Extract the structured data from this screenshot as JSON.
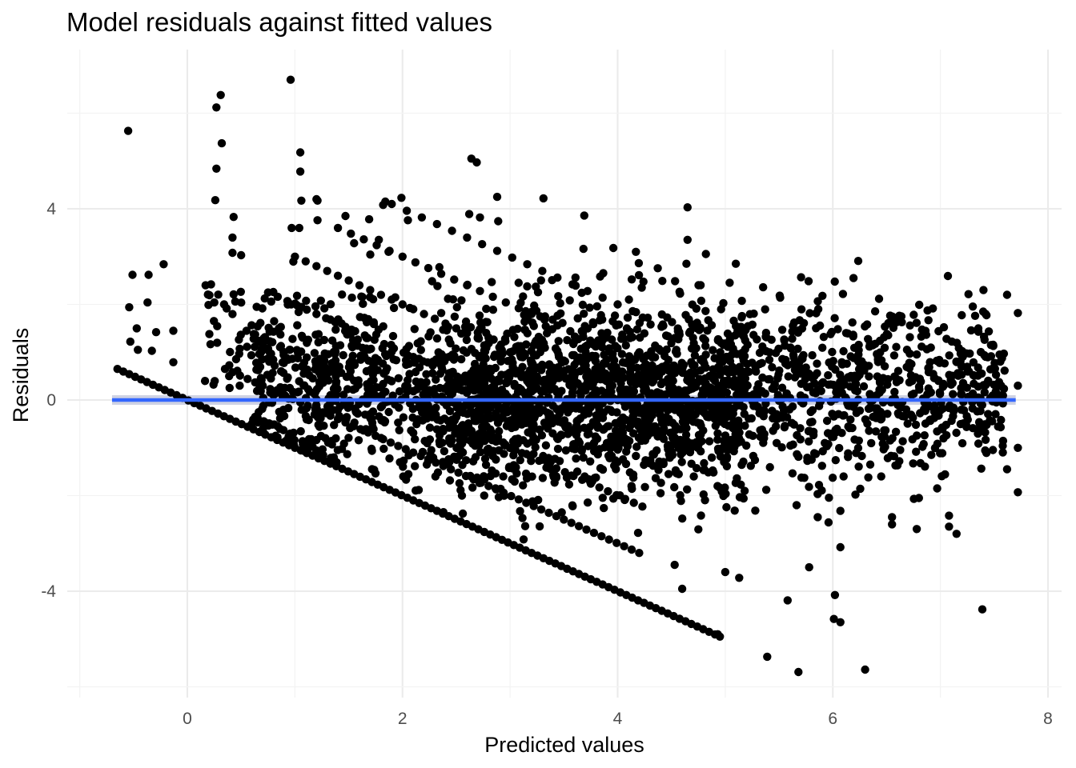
{
  "chart_data": {
    "type": "scatter",
    "title": "Model residuals against fitted values",
    "xlabel": "Predicted values",
    "ylabel": "Residuals",
    "xlim": [
      -1,
      8
    ],
    "ylim": [
      -6,
      7.3
    ],
    "x_ticks": [
      0,
      2,
      4,
      6,
      8
    ],
    "y_ticks": [
      -4,
      0,
      4
    ],
    "x_tick_labels": [
      "0",
      "2",
      "4",
      "6",
      "8"
    ],
    "y_tick_labels": [
      "-4",
      "0",
      "4"
    ],
    "grid": true,
    "theme": "minimal",
    "colors": {
      "points": "#000000",
      "smooth_line": "#3366FF",
      "confidence_band": "#c9cde0"
    },
    "smooth": {
      "method": "linear",
      "points": [
        [
          -0.7,
          0.0
        ],
        [
          7.7,
          0.0
        ]
      ]
    },
    "series": [
      {
        "values": [
          [
            -0.55,
            5.63
          ],
          [
            0.96,
            6.7
          ],
          [
            0.31,
            6.38
          ],
          [
            0.27,
            6.12
          ],
          [
            0.32,
            5.37
          ],
          [
            0.27,
            4.84
          ],
          [
            0.26,
            4.18
          ],
          [
            0.43,
            3.83
          ],
          [
            0.42,
            3.4
          ],
          [
            0.42,
            3.08
          ],
          [
            0.5,
            3.03
          ],
          [
            1.05,
            5.18
          ],
          [
            1.05,
            4.78
          ],
          [
            1.06,
            4.17
          ],
          [
            1.21,
            4.17
          ],
          [
            1.2,
            4.2
          ],
          [
            0.97,
            3.6
          ],
          [
            1.04,
            3.6
          ],
          [
            1.21,
            3.76
          ],
          [
            2.64,
            5.05
          ],
          [
            2.69,
            4.97
          ],
          [
            2.88,
            4.25
          ],
          [
            3.31,
            4.22
          ],
          [
            2.62,
            3.89
          ],
          [
            2.72,
            3.82
          ],
          [
            2.89,
            3.74
          ],
          [
            3.69,
            3.86
          ],
          [
            4.65,
            4.03
          ],
          [
            4.65,
            3.35
          ],
          [
            3.96,
            3.18
          ],
          [
            4.17,
            3.1
          ],
          [
            1.84,
            4.15
          ],
          [
            1.99,
            4.23
          ],
          [
            1.82,
            4.08
          ],
          [
            1.47,
            3.85
          ],
          [
            1.69,
            3.78
          ],
          [
            2.05,
            3.76
          ],
          [
            1.78,
            3.35
          ],
          [
            1.55,
            3.28
          ],
          [
            1.87,
            3.1
          ],
          [
            0.17,
            2.4
          ],
          [
            0.22,
            2.42
          ],
          [
            -0.22,
            2.84
          ],
          [
            -0.36,
            2.62
          ],
          [
            -0.51,
            2.62
          ],
          [
            -0.54,
            1.94
          ],
          [
            -0.37,
            2.04
          ],
          [
            -0.29,
            1.42
          ],
          [
            -0.53,
            1.22
          ],
          [
            -0.46,
            1.05
          ],
          [
            -0.33,
            1.03
          ],
          [
            -0.13,
            1.45
          ],
          [
            -0.13,
            0.79
          ],
          [
            -0.47,
            1.5
          ],
          [
            7.4,
            2.3
          ],
          [
            7.62,
            2.2
          ],
          [
            7.72,
            1.82
          ],
          [
            7.42,
            1.8
          ],
          [
            7.35,
            1.45
          ],
          [
            7.47,
            1.15
          ],
          [
            7.55,
            0.95
          ],
          [
            7.72,
            0.3
          ],
          [
            7.72,
            -1.0
          ],
          [
            7.62,
            -1.45
          ],
          [
            7.72,
            -1.93
          ],
          [
            7.39,
            -4.38
          ],
          [
            6.97,
            -1.85
          ],
          [
            6.8,
            -2.05
          ],
          [
            7.08,
            -2.42
          ],
          [
            7.08,
            -2.65
          ],
          [
            7.15,
            -2.8
          ],
          [
            6.78,
            -2.7
          ],
          [
            6.55,
            -2.45
          ],
          [
            6.55,
            -2.6
          ],
          [
            6.3,
            -5.64
          ],
          [
            5.68,
            -5.69
          ],
          [
            5.39,
            -5.37
          ],
          [
            5.58,
            -4.19
          ],
          [
            6.02,
            -4.08
          ],
          [
            6.07,
            -4.65
          ],
          [
            6.01,
            -4.58
          ],
          [
            5.78,
            -3.5
          ],
          [
            6.07,
            -3.08
          ],
          [
            6.07,
            -2.32
          ],
          [
            5.96,
            -2.56
          ],
          [
            5.86,
            -2.45
          ],
          [
            4.95,
            -4.95
          ],
          [
            4.6,
            -3.95
          ],
          [
            4.53,
            -3.45
          ],
          [
            5.0,
            -3.6
          ],
          [
            5.13,
            -3.72
          ],
          [
            4.93,
            -4.9
          ],
          [
            6.21,
            -1.98
          ],
          [
            6.33,
            -1.62
          ],
          [
            6.45,
            -1.6
          ],
          [
            6.1,
            -1.6
          ]
        ]
      }
    ]
  }
}
